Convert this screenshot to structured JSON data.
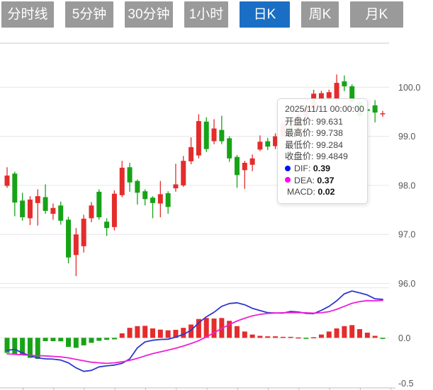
{
  "toolbar": {
    "tabs": [
      {
        "name": "time-share",
        "label": "分时线",
        "selected": false
      },
      {
        "name": "5min",
        "label": "5分钟",
        "selected": false
      },
      {
        "name": "30min",
        "label": "30分钟",
        "selected": false
      },
      {
        "name": "1hour",
        "label": "1小时",
        "selected": false
      },
      {
        "name": "daily-k",
        "label": "日K",
        "selected": true
      },
      {
        "name": "weekly-k",
        "label": "周K",
        "selected": false
      },
      {
        "name": "monthly-k",
        "label": "月K",
        "selected": false
      }
    ]
  },
  "tooltip": {
    "date": "2025/11/11 00:00:00",
    "open_label": "开盘价:",
    "open_value": "99.631",
    "high_label": "最高价:",
    "high_value": "99.738",
    "low_label": "最低价:",
    "low_value": "99.284",
    "close_label": "收盘价:",
    "close_value": "99.4849",
    "dif_label": "DIF:",
    "dif_value": "0.39",
    "dea_label": "DEA:",
    "dea_value": "0.37",
    "macd_label": "MACD:",
    "macd_value": "0.02"
  },
  "axes": {
    "price_labels": [
      "100.0",
      "99.0",
      "98.0",
      "97.0",
      "96.0"
    ],
    "price_values": [
      100,
      99,
      98,
      97,
      96
    ],
    "macd_labels": [
      "0.0",
      "-0.5"
    ],
    "macd_values": [
      0,
      -0.5
    ]
  },
  "colors": {
    "up": "#e42c2c",
    "down": "#17a317",
    "dif": "#2d38cf",
    "dea": "#f01fd6",
    "dif_dot": "#0014ee",
    "dea_dot": "#ff00f0",
    "tab_bg": "#9a9a9a",
    "tab_selected": "#1a6fc4",
    "grid": "#e6e6e6",
    "panel_border": "#c9c9c9",
    "axis_line": "#bdbdbd",
    "axis_text": "#555555"
  },
  "chart_data": {
    "type": "candlestick+macd",
    "hovered_date": "2025/11/11 00:00:00",
    "hovered_index": 48,
    "price_ylim": [
      95.9,
      101.0
    ],
    "macd_ylim": [
      -0.5,
      0.52
    ],
    "grid": true,
    "candles_ohlc": [
      [
        97.99,
        98.37,
        97.95,
        98.2
      ],
      [
        98.24,
        98.28,
        97.37,
        97.65
      ],
      [
        97.69,
        97.85,
        97.28,
        97.35
      ],
      [
        97.33,
        97.78,
        97.19,
        97.71
      ],
      [
        97.64,
        97.92,
        97.18,
        97.78
      ],
      [
        97.76,
        98.02,
        97.42,
        97.48
      ],
      [
        97.42,
        97.63,
        97.3,
        97.54
      ],
      [
        97.59,
        97.67,
        97.2,
        97.28
      ],
      [
        97.3,
        97.36,
        96.41,
        96.53
      ],
      [
        96.58,
        97.13,
        96.15,
        97.0
      ],
      [
        96.76,
        97.4,
        96.63,
        97.32
      ],
      [
        97.33,
        97.66,
        97.25,
        97.59
      ],
      [
        97.87,
        97.92,
        97.3,
        97.35
      ],
      [
        97.26,
        97.33,
        96.97,
        97.13
      ],
      [
        97.15,
        97.9,
        97.08,
        97.83
      ],
      [
        97.8,
        98.5,
        97.76,
        98.36
      ],
      [
        98.37,
        98.46,
        97.87,
        98.06
      ],
      [
        98.09,
        98.12,
        97.61,
        97.85
      ],
      [
        97.88,
        97.92,
        97.59,
        97.72
      ],
      [
        97.75,
        97.78,
        97.33,
        97.64
      ],
      [
        97.63,
        98.09,
        97.35,
        97.82
      ],
      [
        97.84,
        97.88,
        97.42,
        97.56
      ],
      [
        97.94,
        98.44,
        97.87,
        98.02
      ],
      [
        98.0,
        98.6,
        97.97,
        98.5
      ],
      [
        98.49,
        98.98,
        98.43,
        98.78
      ],
      [
        98.61,
        99.45,
        98.55,
        99.31
      ],
      [
        99.3,
        99.39,
        98.68,
        98.74
      ],
      [
        98.9,
        99.35,
        98.84,
        99.16
      ],
      [
        99.13,
        99.42,
        98.84,
        98.9
      ],
      [
        98.96,
        99.0,
        98.48,
        98.55
      ],
      [
        98.58,
        98.62,
        97.95,
        98.21
      ],
      [
        98.31,
        98.5,
        97.93,
        98.46
      ],
      [
        98.42,
        98.63,
        98.29,
        98.55
      ],
      [
        98.73,
        99.02,
        98.7,
        98.89
      ],
      [
        98.9,
        98.97,
        98.72,
        98.79
      ],
      [
        98.8,
        99.06,
        98.74,
        99.0
      ],
      [
        99.0,
        99.31,
        98.95,
        99.26
      ],
      [
        99.26,
        99.32,
        99.02,
        99.06
      ],
      [
        99.06,
        99.5,
        99.01,
        99.44
      ],
      [
        99.4,
        99.66,
        99.34,
        99.6
      ],
      [
        99.55,
        99.95,
        99.48,
        99.87
      ],
      [
        99.75,
        99.93,
        99.68,
        99.88
      ],
      [
        99.78,
        99.95,
        99.7,
        99.9
      ],
      [
        99.75,
        100.26,
        99.62,
        100.09
      ],
      [
        100.12,
        100.24,
        99.92,
        100.02
      ],
      [
        100.02,
        100.06,
        99.58,
        99.7
      ],
      [
        99.7,
        99.76,
        99.32,
        99.42
      ],
      [
        99.55,
        99.66,
        99.26,
        99.52
      ],
      [
        99.631,
        99.738,
        99.284,
        99.4849
      ],
      [
        99.45,
        99.52,
        99.4,
        99.47
      ]
    ],
    "macd_histogram": [
      -0.15,
      -0.16,
      -0.175,
      -0.2,
      -0.21,
      -0.033,
      -0.033,
      -0.035,
      -0.09,
      -0.1,
      -0.075,
      -0.05,
      -0.03,
      -0.02,
      -0.015,
      0.045,
      0.1,
      0.117,
      0.12,
      0.094,
      0.082,
      0.075,
      0.08,
      0.1,
      0.133,
      0.188,
      0.198,
      0.193,
      0.198,
      0.17,
      0.117,
      0.063,
      0.033,
      0.02,
      0.015,
      0.015,
      0.01,
      0.01,
      0.004,
      -0.01,
      0.006,
      0.033,
      0.063,
      0.094,
      0.117,
      0.127,
      0.087,
      0.052,
      0.02,
      -0.006
    ],
    "dif_series": [
      -0.125,
      -0.115,
      -0.15,
      -0.18,
      -0.2,
      -0.21,
      -0.213,
      -0.222,
      -0.25,
      -0.3,
      -0.335,
      -0.325,
      -0.29,
      -0.28,
      -0.272,
      -0.255,
      -0.21,
      -0.1,
      -0.04,
      -0.024,
      -0.016,
      -0.014,
      0.008,
      0.035,
      0.075,
      0.15,
      0.21,
      0.255,
      0.315,
      0.343,
      0.35,
      0.33,
      0.295,
      0.272,
      0.252,
      0.248,
      0.247,
      0.264,
      0.258,
      0.245,
      0.242,
      0.275,
      0.315,
      0.37,
      0.44,
      0.468,
      0.45,
      0.428,
      0.39,
      0.385
    ],
    "dea_series": [
      -0.16,
      -0.165,
      -0.17,
      -0.175,
      -0.178,
      -0.18,
      -0.185,
      -0.19,
      -0.2,
      -0.215,
      -0.23,
      -0.243,
      -0.25,
      -0.255,
      -0.25,
      -0.24,
      -0.225,
      -0.205,
      -0.18,
      -0.158,
      -0.14,
      -0.122,
      -0.104,
      -0.082,
      -0.057,
      -0.028,
      0.01,
      0.05,
      0.094,
      0.132,
      0.168,
      0.196,
      0.22,
      0.235,
      0.243,
      0.248,
      0.25,
      0.252,
      0.252,
      0.25,
      0.247,
      0.25,
      0.262,
      0.285,
      0.315,
      0.345,
      0.362,
      0.372,
      0.37,
      0.375
    ]
  }
}
